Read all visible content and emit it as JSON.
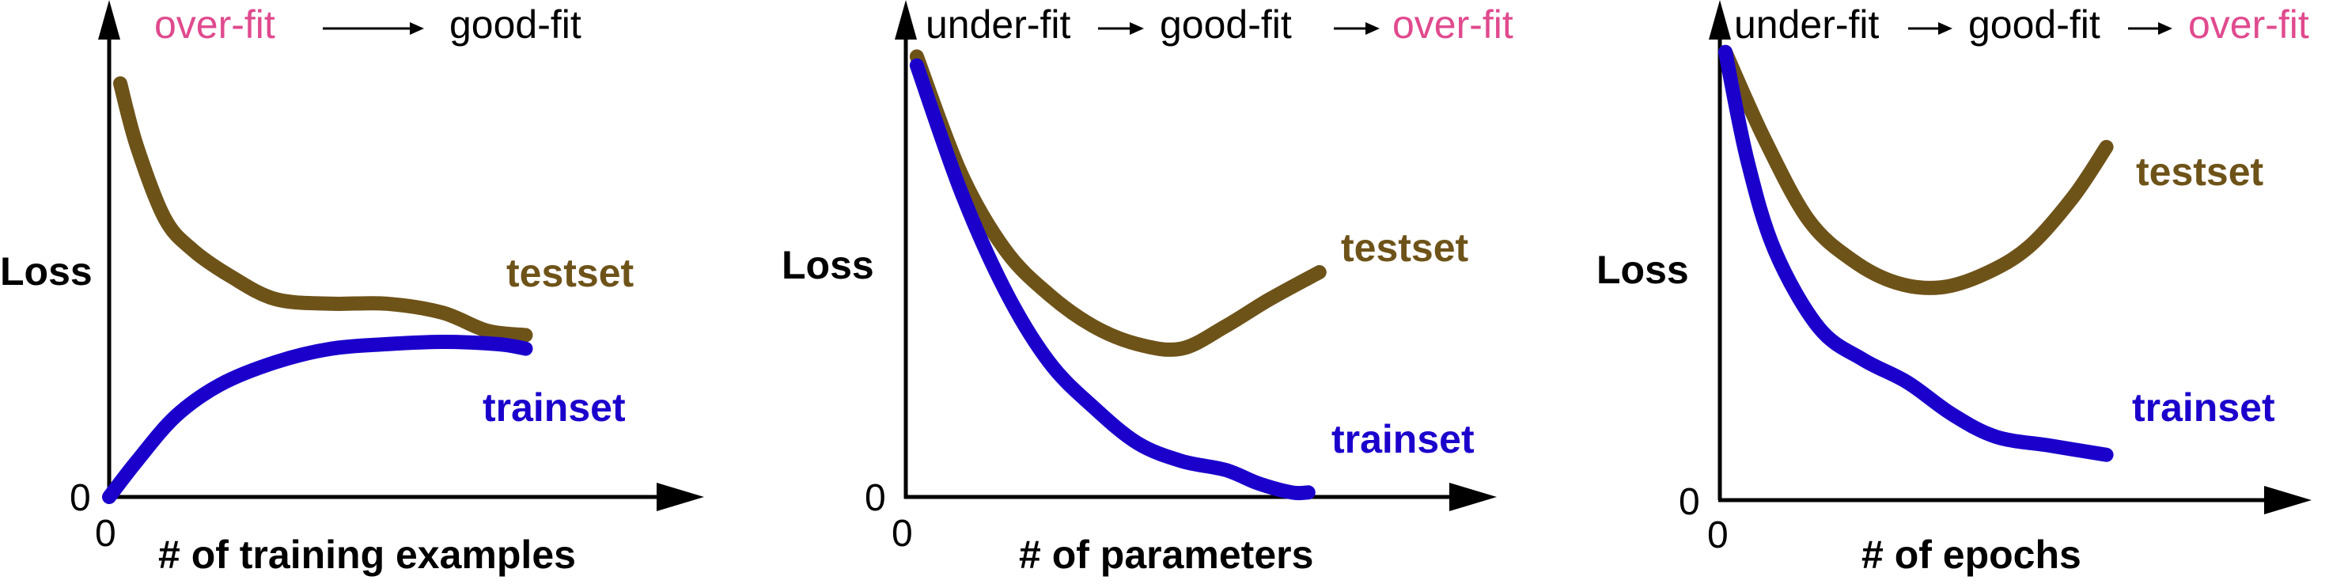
{
  "colors": {
    "testset": "#6e5319",
    "trainset": "#1b00cc",
    "overfit": "#e04a8e",
    "text": "#000000"
  },
  "chart_data": [
    {
      "type": "line",
      "xlabel": "# of training examples",
      "ylabel": "Loss",
      "x_tick": "0",
      "y_tick": "0",
      "xlim": [
        0,
        100
      ],
      "ylim": [
        0,
        100
      ],
      "regimes": [
        {
          "text": "over-fit",
          "color": "overfit"
        },
        {
          "text": "good-fit",
          "color": "text"
        }
      ],
      "series": [
        {
          "name": "testset",
          "color": "testset",
          "points": [
            [
              2,
              92
            ],
            [
              5,
              78
            ],
            [
              10,
              62
            ],
            [
              15,
              55
            ],
            [
              22,
              49
            ],
            [
              30,
              44
            ],
            [
              40,
              43
            ],
            [
              50,
              43
            ],
            [
              60,
              41
            ],
            [
              68,
              37
            ],
            [
              75,
              36
            ]
          ]
        },
        {
          "name": "trainset",
          "color": "trainset",
          "points": [
            [
              0,
              0
            ],
            [
              5,
              8
            ],
            [
              12,
              18
            ],
            [
              20,
              25
            ],
            [
              30,
              30
            ],
            [
              40,
              33
            ],
            [
              50,
              34
            ],
            [
              60,
              34.5
            ],
            [
              70,
              34
            ],
            [
              75,
              33
            ]
          ]
        }
      ]
    },
    {
      "type": "line",
      "xlabel": "# of parameters",
      "ylabel": "Loss",
      "x_tick": "0",
      "y_tick": "0",
      "xlim": [
        0,
        100
      ],
      "ylim": [
        0,
        100
      ],
      "regimes": [
        {
          "text": "under-fit",
          "color": "text"
        },
        {
          "text": "good-fit",
          "color": "text"
        },
        {
          "text": "over-fit",
          "color": "overfit"
        }
      ],
      "series": [
        {
          "name": "testset",
          "color": "testset",
          "points": [
            [
              2,
              98
            ],
            [
              10,
              72
            ],
            [
              18,
              55
            ],
            [
              26,
              45
            ],
            [
              34,
              38
            ],
            [
              42,
              34
            ],
            [
              50,
              33
            ],
            [
              58,
              38
            ],
            [
              66,
              44
            ],
            [
              75,
              50
            ]
          ]
        },
        {
          "name": "trainset",
          "color": "trainset",
          "points": [
            [
              2,
              96
            ],
            [
              10,
              68
            ],
            [
              18,
              46
            ],
            [
              26,
              30
            ],
            [
              34,
              20
            ],
            [
              42,
              12
            ],
            [
              50,
              8
            ],
            [
              58,
              6
            ],
            [
              64,
              3
            ],
            [
              70,
              1
            ],
            [
              73,
              1
            ]
          ]
        }
      ]
    },
    {
      "type": "line",
      "xlabel": "# of epochs",
      "ylabel": "Loss",
      "x_tick": "0",
      "y_tick": "0",
      "xlim": [
        0,
        100
      ],
      "ylim": [
        0,
        100
      ],
      "regimes": [
        {
          "text": "under-fit",
          "color": "text"
        },
        {
          "text": "good-fit",
          "color": "text"
        },
        {
          "text": "over-fit",
          "color": "overfit"
        }
      ],
      "series": [
        {
          "name": "testset",
          "color": "testset",
          "points": [
            [
              1,
              99
            ],
            [
              8,
              80
            ],
            [
              16,
              62
            ],
            [
              24,
              53
            ],
            [
              32,
              48
            ],
            [
              40,
              47
            ],
            [
              48,
              50
            ],
            [
              56,
              56
            ],
            [
              64,
              67
            ],
            [
              70,
              78
            ]
          ]
        },
        {
          "name": "trainset",
          "color": "trainset",
          "points": [
            [
              1,
              99
            ],
            [
              5,
              75
            ],
            [
              10,
              55
            ],
            [
              18,
              38
            ],
            [
              26,
              31
            ],
            [
              34,
              26
            ],
            [
              42,
              19
            ],
            [
              50,
              14
            ],
            [
              60,
              12
            ],
            [
              70,
              10
            ]
          ]
        }
      ]
    }
  ]
}
